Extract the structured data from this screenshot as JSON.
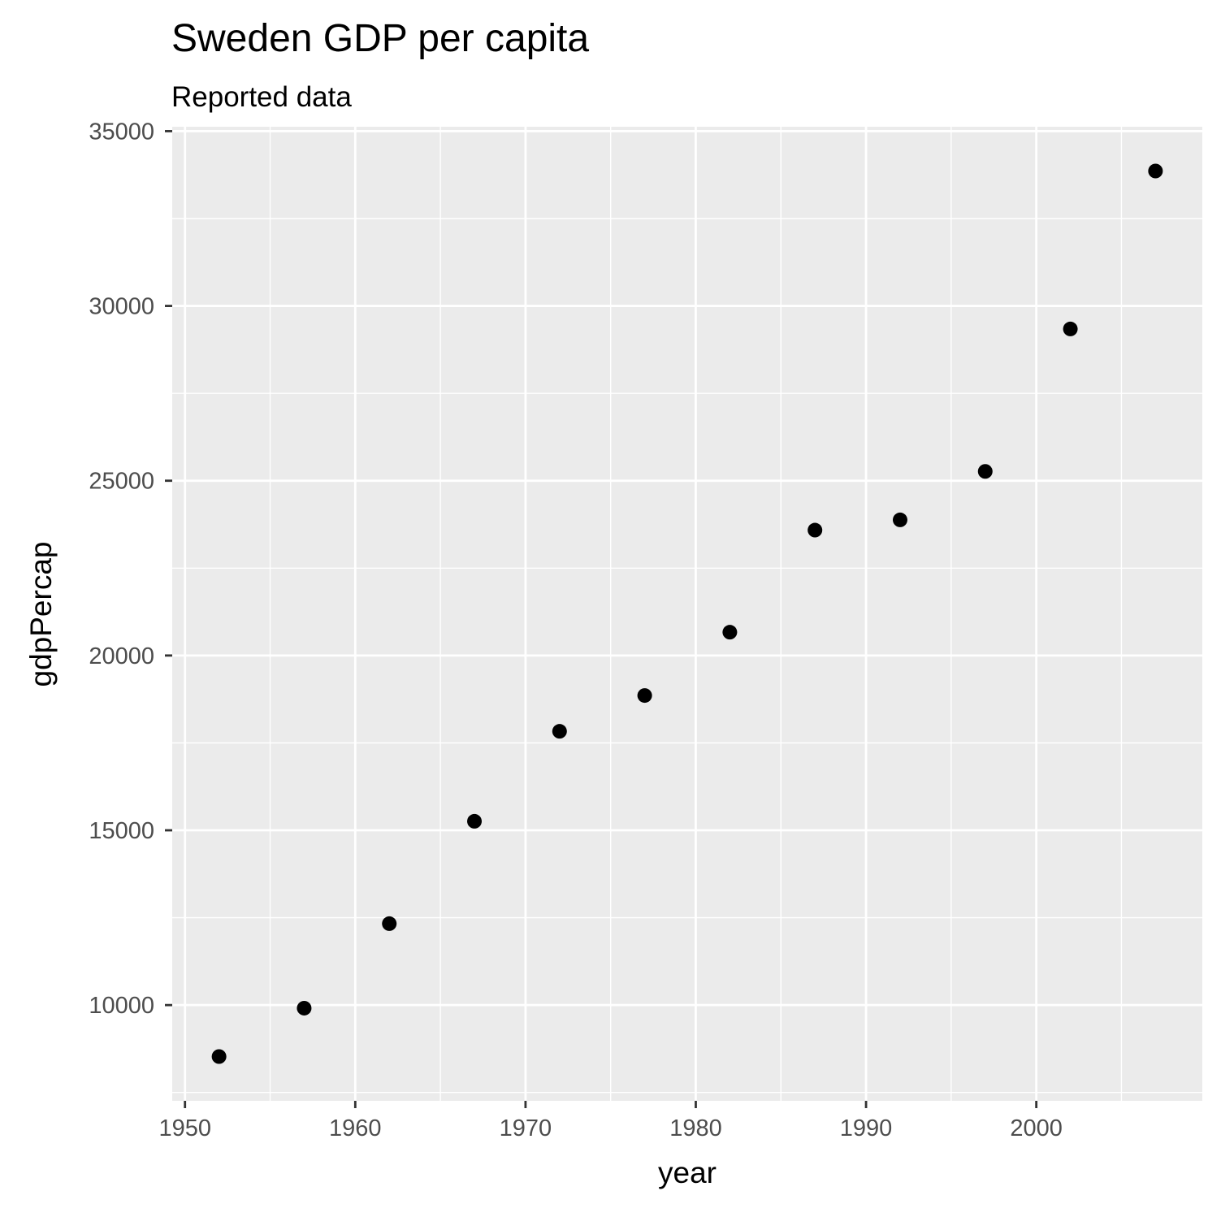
{
  "chart_data": {
    "type": "scatter",
    "title": "Sweden GDP per capita",
    "subtitle": "Reported data",
    "xlabel": "year",
    "ylabel": "gdpPercap",
    "x": [
      1952,
      1957,
      1962,
      1967,
      1972,
      1977,
      1982,
      1987,
      1992,
      1997,
      2002,
      2007
    ],
    "y": [
      8527.8,
      9911.9,
      12329.4,
      15258.3,
      17832.0,
      18855.7,
      20667.4,
      23587.0,
      23880.0,
      25266.6,
      29341.6,
      33859.7
    ],
    "xlim": [
      1949.25,
      2009.75
    ],
    "ylim": [
      7261.2,
      35126.3
    ],
    "x_ticks": [
      1950,
      1960,
      1970,
      1980,
      1990,
      2000
    ],
    "x_tick_labels": [
      "1950",
      "1960",
      "1970",
      "1980",
      "1990",
      "2000"
    ],
    "y_ticks": [
      10000,
      15000,
      20000,
      25000,
      30000,
      35000
    ],
    "y_tick_labels": [
      "10000",
      "15000",
      "20000",
      "25000",
      "30000",
      "35000"
    ],
    "grid": true,
    "panel_color": "#ebebeb",
    "point_color": "#000000"
  }
}
